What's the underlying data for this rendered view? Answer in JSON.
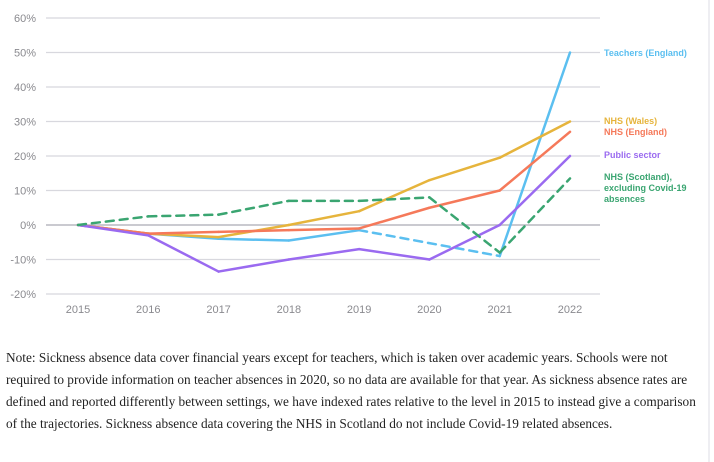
{
  "chart_data": {
    "type": "line",
    "title": "",
    "xlabel": "",
    "ylabel": "",
    "categories": [
      "2015",
      "2016",
      "2017",
      "2018",
      "2019",
      "2020",
      "2021",
      "2022"
    ],
    "ylim": [
      -20,
      60
    ],
    "yticks": [
      "-20%",
      "-10%",
      "0%",
      "10%",
      "20%",
      "30%",
      "40%",
      "50%",
      "60%"
    ],
    "grid": true,
    "legend": "right (direct labels)",
    "series": [
      {
        "name": "Teachers (England)",
        "color": "#5bbff0",
        "values": [
          0,
          -2.5,
          -4,
          -4.5,
          -1.5,
          null,
          -9,
          50
        ],
        "style": "solid, dashed across missing 2020"
      },
      {
        "name": "NHS (Wales)",
        "color": "#e6b43c",
        "values": [
          0,
          -2.5,
          -3.5,
          0,
          4,
          13,
          19.5,
          30
        ],
        "style": "solid"
      },
      {
        "name": "NHS (England)",
        "color": "#f5795a",
        "values": [
          0,
          -2.5,
          -2,
          -1.5,
          -1,
          5,
          10,
          27
        ],
        "style": "solid"
      },
      {
        "name": "Public sector",
        "color": "#9a6af0",
        "values": [
          0,
          -3,
          -13.5,
          -10,
          -7,
          -10,
          0,
          20
        ],
        "style": "solid"
      },
      {
        "name": "NHS (Scotland), excluding Covid-19 absences",
        "label_lines": [
          "NHS (Scotland),",
          "excluding Covid-19",
          "absences"
        ],
        "color": "#3aa571",
        "values": [
          0,
          2.5,
          3,
          7,
          7,
          8,
          -8,
          13.5
        ],
        "style": "dashed"
      }
    ]
  },
  "note": "Note: Sickness absence data cover financial years except for teachers, which is taken over academic years. Schools were not required to provide information on teacher absences in 2020, so no data are available for that year. As sickness absence rates are defined and reported differently between settings, we have indexed rates relative to the level in 2015 to instead give a comparison of the trajectories. Sickness absence data covering the NHS in Scotland do not include Covid-19 related absences."
}
